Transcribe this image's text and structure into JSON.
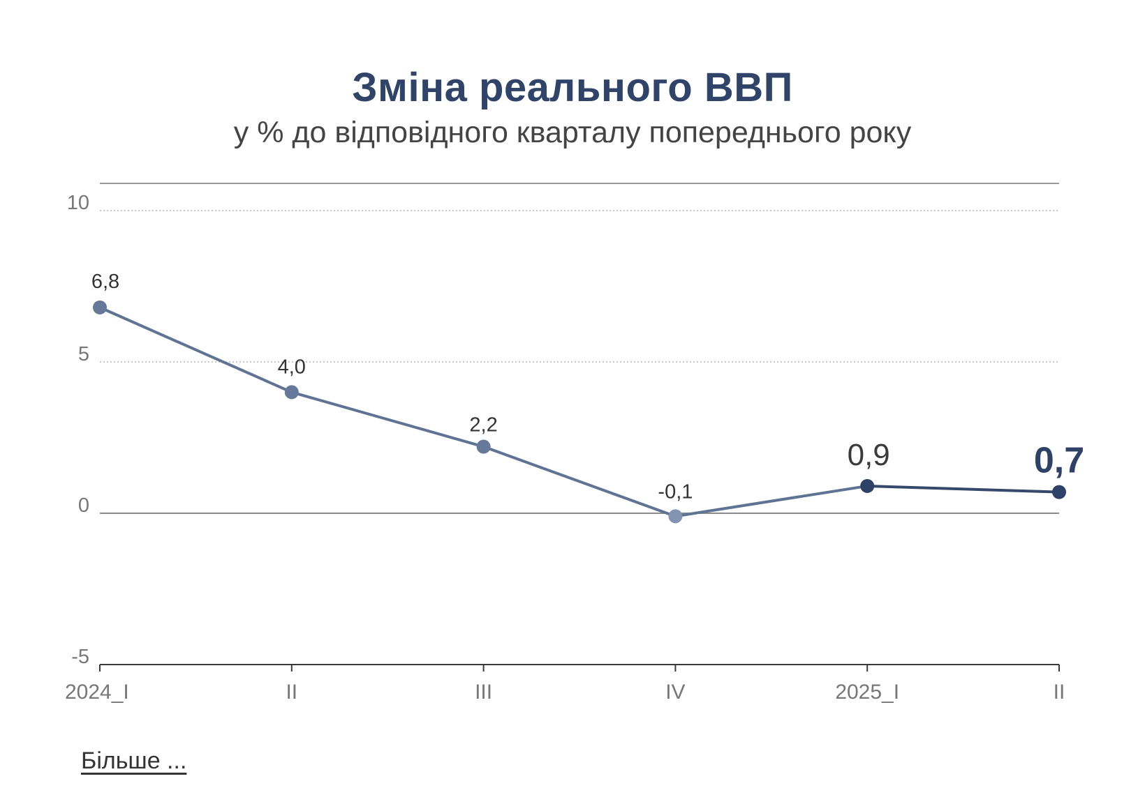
{
  "chart_data": {
    "type": "line",
    "title": "Зміна реального ВВП",
    "subtitle": "у % до відповідного кварталу попереднього року",
    "categories": [
      "2024_I",
      "II",
      "III",
      "IV",
      "2025_I",
      "II"
    ],
    "series": [
      {
        "values": [
          6.8,
          4.0,
          2.2,
          -0.1,
          0.9,
          0.7
        ],
        "labels": [
          "6,8",
          "4,0",
          "2,2",
          "-0,1",
          "0,9",
          "0,7"
        ]
      }
    ],
    "ylim": [
      -5,
      11
    ],
    "yticks": [
      10,
      5,
      0,
      -5
    ],
    "ytick_labels": [
      "10",
      "5",
      "0",
      "-5"
    ],
    "grid": "dotted",
    "colors": {
      "line": "#5f7394",
      "point": "#66799a",
      "point_low": "#8294b1",
      "point_highlight": "#2e4166",
      "line_highlight": "#36496c"
    }
  },
  "footer": {
    "more_label": "Більше ..."
  }
}
